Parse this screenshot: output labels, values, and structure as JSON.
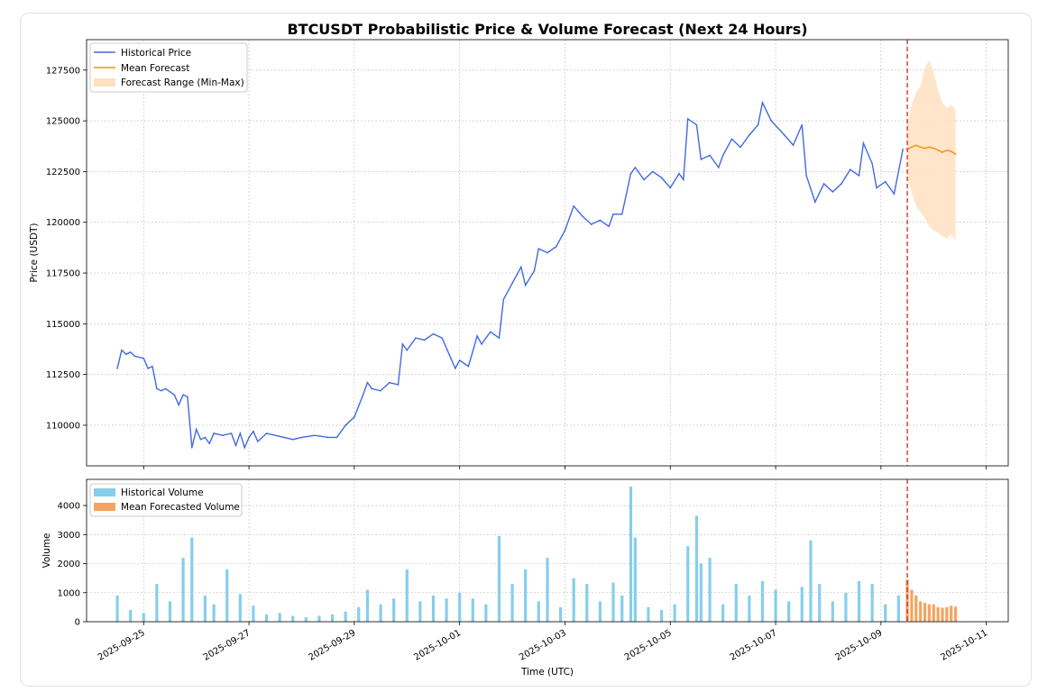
{
  "chart_data": [
    {
      "type": "line",
      "title": "BTCUSDT Probabilistic Price & Volume Forecast (Next 24 Hours)",
      "ylabel": "Price (USDT)",
      "ylim": [
        108000,
        129000
      ],
      "yticks": [
        110000,
        112500,
        115000,
        117500,
        120000,
        122500,
        125000,
        127500
      ],
      "grid": true,
      "legend_position": "top-left",
      "forecast_start": "2025-10-09 12:00",
      "series": [
        {
          "name": "Historical Price",
          "color": "#4169e1",
          "points": [
            [
              "2025-09-24 12:00",
              112800
            ],
            [
              "2025-09-24 14:00",
              113700
            ],
            [
              "2025-09-24 16:00",
              113500
            ],
            [
              "2025-09-24 18:00",
              113600
            ],
            [
              "2025-09-24 20:00",
              113400
            ],
            [
              "2025-09-25 00:00",
              113300
            ],
            [
              "2025-09-25 02:00",
              112800
            ],
            [
              "2025-09-25 04:00",
              112900
            ],
            [
              "2025-09-25 06:00",
              111800
            ],
            [
              "2025-09-25 08:00",
              111700
            ],
            [
              "2025-09-25 10:00",
              111800
            ],
            [
              "2025-09-25 14:00",
              111500
            ],
            [
              "2025-09-25 16:00",
              111000
            ],
            [
              "2025-09-25 18:00",
              111500
            ],
            [
              "2025-09-25 20:00",
              111400
            ],
            [
              "2025-09-25 22:00",
              108900
            ],
            [
              "2025-09-26 00:00",
              109800
            ],
            [
              "2025-09-26 02:00",
              109300
            ],
            [
              "2025-09-26 04:00",
              109400
            ],
            [
              "2025-09-26 06:00",
              109100
            ],
            [
              "2025-09-26 08:00",
              109600
            ],
            [
              "2025-09-26 12:00",
              109500
            ],
            [
              "2025-09-26 16:00",
              109600
            ],
            [
              "2025-09-26 18:00",
              109000
            ],
            [
              "2025-09-26 20:00",
              109600
            ],
            [
              "2025-09-26 22:00",
              108900
            ],
            [
              "2025-09-27 00:00",
              109400
            ],
            [
              "2025-09-27 02:00",
              109700
            ],
            [
              "2025-09-27 04:00",
              109200
            ],
            [
              "2025-09-27 08:00",
              109600
            ],
            [
              "2025-09-27 12:00",
              109500
            ],
            [
              "2025-09-27 16:00",
              109400
            ],
            [
              "2025-09-27 20:00",
              109300
            ],
            [
              "2025-09-28 00:00",
              109400
            ],
            [
              "2025-09-28 06:00",
              109500
            ],
            [
              "2025-09-28 12:00",
              109400
            ],
            [
              "2025-09-28 16:00",
              109400
            ],
            [
              "2025-09-28 20:00",
              110000
            ],
            [
              "2025-09-29 00:00",
              110400
            ],
            [
              "2025-09-29 04:00",
              111500
            ],
            [
              "2025-09-29 06:00",
              112100
            ],
            [
              "2025-09-29 08:00",
              111800
            ],
            [
              "2025-09-29 12:00",
              111700
            ],
            [
              "2025-09-29 16:00",
              112100
            ],
            [
              "2025-09-29 20:00",
              112000
            ],
            [
              "2025-09-29 22:00",
              114000
            ],
            [
              "2025-09-30 00:00",
              113700
            ],
            [
              "2025-09-30 04:00",
              114300
            ],
            [
              "2025-09-30 08:00",
              114200
            ],
            [
              "2025-09-30 12:00",
              114500
            ],
            [
              "2025-09-30 16:00",
              114300
            ],
            [
              "2025-09-30 20:00",
              113300
            ],
            [
              "2025-09-30 22:00",
              112800
            ],
            [
              "2025-10-01 00:00",
              113200
            ],
            [
              "2025-10-01 04:00",
              112900
            ],
            [
              "2025-10-01 08:00",
              114400
            ],
            [
              "2025-10-01 10:00",
              114000
            ],
            [
              "2025-10-01 14:00",
              114600
            ],
            [
              "2025-10-01 18:00",
              114300
            ],
            [
              "2025-10-01 20:00",
              116200
            ],
            [
              "2025-10-02 00:00",
              117000
            ],
            [
              "2025-10-02 04:00",
              117800
            ],
            [
              "2025-10-02 06:00",
              116900
            ],
            [
              "2025-10-02 10:00",
              117600
            ],
            [
              "2025-10-02 12:00",
              118700
            ],
            [
              "2025-10-02 16:00",
              118500
            ],
            [
              "2025-10-02 20:00",
              118800
            ],
            [
              "2025-10-03 00:00",
              119600
            ],
            [
              "2025-10-03 04:00",
              120800
            ],
            [
              "2025-10-03 08:00",
              120300
            ],
            [
              "2025-10-03 12:00",
              119900
            ],
            [
              "2025-10-03 16:00",
              120100
            ],
            [
              "2025-10-03 20:00",
              119800
            ],
            [
              "2025-10-03 22:00",
              120400
            ],
            [
              "2025-10-04 02:00",
              120400
            ],
            [
              "2025-10-04 06:00",
              122400
            ],
            [
              "2025-10-04 08:00",
              122700
            ],
            [
              "2025-10-04 12:00",
              122100
            ],
            [
              "2025-10-04 16:00",
              122500
            ],
            [
              "2025-10-04 20:00",
              122200
            ],
            [
              "2025-10-05 00:00",
              121700
            ],
            [
              "2025-10-05 04:00",
              122400
            ],
            [
              "2025-10-05 06:00",
              122100
            ],
            [
              "2025-10-05 08:00",
              125100
            ],
            [
              "2025-10-05 12:00",
              124800
            ],
            [
              "2025-10-05 14:00",
              123100
            ],
            [
              "2025-10-05 18:00",
              123300
            ],
            [
              "2025-10-05 22:00",
              122700
            ],
            [
              "2025-10-06 00:00",
              123300
            ],
            [
              "2025-10-06 04:00",
              124100
            ],
            [
              "2025-10-06 08:00",
              123700
            ],
            [
              "2025-10-06 12:00",
              124300
            ],
            [
              "2025-10-06 16:00",
              124800
            ],
            [
              "2025-10-06 18:00",
              125900
            ],
            [
              "2025-10-06 22:00",
              125000
            ],
            [
              "2025-10-07 04:00",
              124300
            ],
            [
              "2025-10-07 08:00",
              123800
            ],
            [
              "2025-10-07 12:00",
              124800
            ],
            [
              "2025-10-07 14:00",
              122300
            ],
            [
              "2025-10-07 18:00",
              121000
            ],
            [
              "2025-10-07 22:00",
              121900
            ],
            [
              "2025-10-08 02:00",
              121500
            ],
            [
              "2025-10-08 06:00",
              121900
            ],
            [
              "2025-10-08 10:00",
              122600
            ],
            [
              "2025-10-08 14:00",
              122300
            ],
            [
              "2025-10-08 16:00",
              123900
            ],
            [
              "2025-10-08 20:00",
              122900
            ],
            [
              "2025-10-08 22:00",
              121700
            ],
            [
              "2025-10-09 02:00",
              122000
            ],
            [
              "2025-10-09 06:00",
              121400
            ],
            [
              "2025-10-09 10:00",
              123600
            ]
          ]
        },
        {
          "name": "Mean Forecast",
          "color": "#ff8c00",
          "points": [
            [
              "2025-10-09 12:00",
              123600
            ],
            [
              "2025-10-09 14:00",
              123700
            ],
            [
              "2025-10-09 16:00",
              123800
            ],
            [
              "2025-10-09 18:00",
              123700
            ],
            [
              "2025-10-09 20:00",
              123650
            ],
            [
              "2025-10-09 22:00",
              123700
            ],
            [
              "2025-10-10 00:00",
              123650
            ],
            [
              "2025-10-10 02:00",
              123550
            ],
            [
              "2025-10-10 04:00",
              123450
            ],
            [
              "2025-10-10 06:00",
              123550
            ],
            [
              "2025-10-10 08:00",
              123500
            ],
            [
              "2025-10-10 10:00",
              123350
            ]
          ]
        },
        {
          "name": "Forecast Range (Min-Max)",
          "type": "area",
          "color": "#ffe0c0",
          "upper": [
            124800,
            125800,
            126400,
            126700,
            127600,
            128000,
            127400,
            126500,
            125900,
            125600,
            125800,
            125500
          ],
          "lower": [
            122200,
            121500,
            120800,
            120500,
            120200,
            119800,
            119600,
            119500,
            119300,
            119200,
            119400,
            119100
          ]
        }
      ]
    },
    {
      "type": "bar",
      "ylabel": "Volume",
      "xlabel": "Time (UTC)",
      "ylim": [
        0,
        4900
      ],
      "yticks": [
        0,
        1000,
        2000,
        3000,
        4000
      ],
      "xticks": [
        "2025-09-25",
        "2025-09-27",
        "2025-09-29",
        "2025-10-01",
        "2025-10-03",
        "2025-10-05",
        "2025-10-07",
        "2025-10-09",
        "2025-10-11"
      ],
      "grid": true,
      "legend_position": "top-left",
      "series": [
        {
          "name": "Historical Volume",
          "color": "#87ceeb",
          "points": [
            [
              "2025-09-24 12:00",
              900
            ],
            [
              "2025-09-24 18:00",
              400
            ],
            [
              "2025-09-25 00:00",
              300
            ],
            [
              "2025-09-25 06:00",
              1300
            ],
            [
              "2025-09-25 12:00",
              700
            ],
            [
              "2025-09-25 18:00",
              2200
            ],
            [
              "2025-09-25 22:00",
              2900
            ],
            [
              "2025-09-26 04:00",
              900
            ],
            [
              "2025-09-26 08:00",
              600
            ],
            [
              "2025-09-26 14:00",
              1800
            ],
            [
              "2025-09-26 20:00",
              950
            ],
            [
              "2025-09-27 02:00",
              550
            ],
            [
              "2025-09-27 08:00",
              250
            ],
            [
              "2025-09-27 14:00",
              300
            ],
            [
              "2025-09-27 20:00",
              200
            ],
            [
              "2025-09-28 02:00",
              150
            ],
            [
              "2025-09-28 08:00",
              200
            ],
            [
              "2025-09-28 14:00",
              250
            ],
            [
              "2025-09-28 20:00",
              350
            ],
            [
              "2025-09-29 02:00",
              500
            ],
            [
              "2025-09-29 06:00",
              1100
            ],
            [
              "2025-09-29 12:00",
              600
            ],
            [
              "2025-09-29 18:00",
              800
            ],
            [
              "2025-09-30 00:00",
              1800
            ],
            [
              "2025-09-30 06:00",
              700
            ],
            [
              "2025-09-30 12:00",
              900
            ],
            [
              "2025-09-30 18:00",
              800
            ],
            [
              "2025-10-01 00:00",
              1000
            ],
            [
              "2025-10-01 06:00",
              800
            ],
            [
              "2025-10-01 12:00",
              600
            ],
            [
              "2025-10-01 18:00",
              2950
            ],
            [
              "2025-10-02 00:00",
              1300
            ],
            [
              "2025-10-02 06:00",
              1800
            ],
            [
              "2025-10-02 12:00",
              700
            ],
            [
              "2025-10-02 16:00",
              2200
            ],
            [
              "2025-10-02 22:00",
              500
            ],
            [
              "2025-10-03 04:00",
              1500
            ],
            [
              "2025-10-03 10:00",
              1300
            ],
            [
              "2025-10-03 16:00",
              700
            ],
            [
              "2025-10-03 22:00",
              1350
            ],
            [
              "2025-10-04 02:00",
              900
            ],
            [
              "2025-10-04 06:00",
              4650
            ],
            [
              "2025-10-04 08:00",
              2900
            ],
            [
              "2025-10-04 14:00",
              500
            ],
            [
              "2025-10-04 20:00",
              400
            ],
            [
              "2025-10-05 02:00",
              600
            ],
            [
              "2025-10-05 08:00",
              2600
            ],
            [
              "2025-10-05 12:00",
              3650
            ],
            [
              "2025-10-05 14:00",
              2000
            ],
            [
              "2025-10-05 18:00",
              2200
            ],
            [
              "2025-10-06 00:00",
              600
            ],
            [
              "2025-10-06 06:00",
              1300
            ],
            [
              "2025-10-06 12:00",
              900
            ],
            [
              "2025-10-06 18:00",
              1400
            ],
            [
              "2025-10-07 00:00",
              1100
            ],
            [
              "2025-10-07 06:00",
              700
            ],
            [
              "2025-10-07 12:00",
              1200
            ],
            [
              "2025-10-07 16:00",
              2800
            ],
            [
              "2025-10-07 20:00",
              1300
            ],
            [
              "2025-10-08 02:00",
              700
            ],
            [
              "2025-10-08 08:00",
              1000
            ],
            [
              "2025-10-08 14:00",
              1400
            ],
            [
              "2025-10-08 20:00",
              1300
            ],
            [
              "2025-10-09 02:00",
              600
            ],
            [
              "2025-10-09 08:00",
              900
            ]
          ]
        },
        {
          "name": "Mean Forecasted Volume",
          "color": "#f4a460",
          "points": [
            [
              "2025-10-09 12:00",
              1450
            ],
            [
              "2025-10-09 14:00",
              1100
            ],
            [
              "2025-10-09 16:00",
              900
            ],
            [
              "2025-10-09 18:00",
              700
            ],
            [
              "2025-10-09 20:00",
              650
            ],
            [
              "2025-10-09 22:00",
              600
            ],
            [
              "2025-10-10 00:00",
              600
            ],
            [
              "2025-10-10 02:00",
              500
            ],
            [
              "2025-10-10 04:00",
              480
            ],
            [
              "2025-10-10 06:00",
              500
            ],
            [
              "2025-10-10 08:00",
              550
            ],
            [
              "2025-10-10 10:00",
              520
            ]
          ]
        }
      ]
    }
  ],
  "vline_color": "#d62728"
}
